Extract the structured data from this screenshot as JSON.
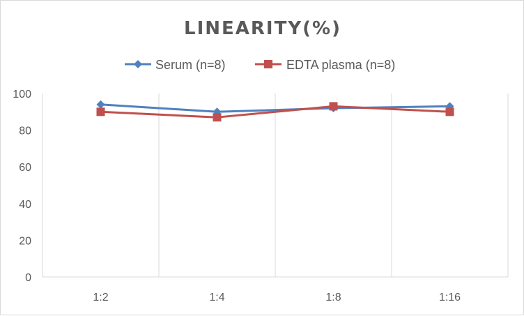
{
  "chart_data": {
    "type": "line",
    "title": "LINEARITY(%)",
    "categories": [
      "1:2",
      "1:4",
      "1:8",
      "1:16"
    ],
    "ylim": [
      0,
      100
    ],
    "yticks": [
      "0",
      "20",
      "40",
      "60",
      "80",
      "100"
    ],
    "grid": "vertical",
    "legend": "top",
    "series": [
      {
        "name": "Serum (n=8)",
        "values": [
          94,
          90,
          92,
          93
        ],
        "color": "#4f81bd",
        "marker": "diamond"
      },
      {
        "name": "EDTA plasma (n=8)",
        "values": [
          90,
          87,
          93,
          90
        ],
        "color": "#c0504d",
        "marker": "square"
      }
    ]
  }
}
